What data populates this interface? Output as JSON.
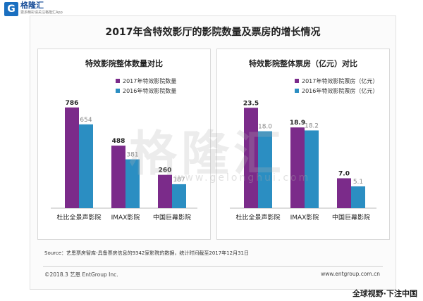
{
  "logo": {
    "mark": "G",
    "name": "格隆汇",
    "sub": "更多精彩请关注格隆汇App"
  },
  "main_title": "2017年含特效影厅的影院数量及票房的增长情况",
  "source": "Source：艺恩票房智库-具备票房信息的9342家影院的数据，统计时间截至2017年12月31日",
  "copyright": "©2018.3 艺恩 EntGroup Inc.",
  "website": "www.entgroup.com.cn",
  "watermark": "格隆汇",
  "watermark_url": "www.gelonghui.com",
  "banner": "全球视野·下注中国",
  "colors": {
    "series_2017": "#7b2b8a",
    "series_2016": "#2b8ec2",
    "logo": "#1a6fc0"
  },
  "chart_data": [
    {
      "type": "bar",
      "title": "特效影院整体数量对比",
      "categories": [
        "杜比全景声影院",
        "IMAX影院",
        "中国巨幕影院"
      ],
      "series": [
        {
          "name": "2017年特效影院数量",
          "values": [
            786,
            488,
            260
          ]
        },
        {
          "name": "2016年特效影院数量",
          "values": [
            654,
            381,
            187
          ]
        }
      ],
      "value_labels": [
        [
          "786",
          "488",
          "260"
        ],
        [
          "654",
          "381",
          "187"
        ]
      ],
      "ylim": [
        0,
        900
      ],
      "grid": false,
      "legend": "top-right"
    },
    {
      "type": "bar",
      "title": "特效影院整体票房（亿元）对比",
      "categories": [
        "杜比全景声影院",
        "IMAX影院",
        "中国巨幕影院"
      ],
      "series": [
        {
          "name": "2017年特效影院票房（亿元）",
          "values": [
            23.5,
            18.9,
            7.0
          ]
        },
        {
          "name": "2016年特效影院票房（亿元）",
          "values": [
            18.0,
            18.2,
            5.1
          ]
        }
      ],
      "value_labels": [
        [
          "23.5",
          "18.9",
          "7.0"
        ],
        [
          "18.0",
          "18.2",
          "5.1"
        ]
      ],
      "ylim": [
        0,
        27
      ],
      "grid": false,
      "legend": "top-right"
    }
  ]
}
